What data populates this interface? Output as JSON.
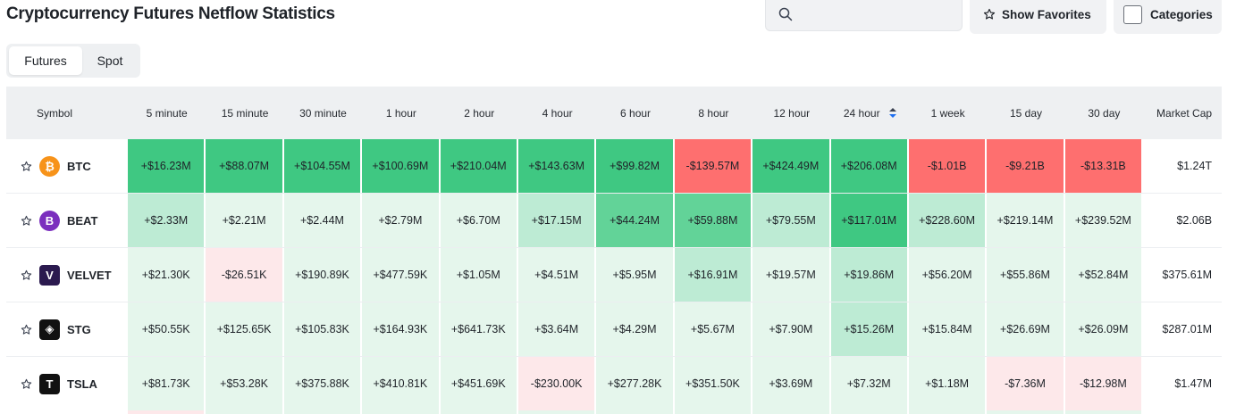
{
  "page_title": "Cryptocurrency Futures Netflow Statistics",
  "search": {
    "placeholder": ""
  },
  "toolbar": {
    "favorites_label": "Show Favorites",
    "categories_label": "Categories"
  },
  "tabs": [
    {
      "label": "Futures",
      "active": true
    },
    {
      "label": "Spot",
      "active": false
    }
  ],
  "columns": [
    "Symbol",
    "5 minute",
    "15 minute",
    "30 minute",
    "1 hour",
    "2 hour",
    "4 hour",
    "6 hour",
    "8 hour",
    "12 hour",
    "24 hour",
    "1 week",
    "15 day",
    "30 day",
    "Market Cap"
  ],
  "sorted_column": "24 hour",
  "colors": {
    "green_strong": "#3fc882",
    "green_medium": "#62d398",
    "green_soft": "#bdebd4",
    "green_faint": "#e5f6ec",
    "red_strong": "#fe6f6f",
    "red_faint": "#fde8ea",
    "accent_blue": "#1e6ff0"
  },
  "rows": [
    {
      "symbol": "BTC",
      "icon": "bitcoin-icon",
      "icon_color": "#f7931a",
      "icon_glyph": "₿",
      "values": [
        "+$16.23M",
        "+$88.07M",
        "+$104.55M",
        "+$100.69M",
        "+$210.04M",
        "+$143.63M",
        "+$99.82M",
        "-$139.57M",
        "+$424.49M",
        "+$206.08M",
        "-$1.01B",
        "-$9.21B",
        "-$13.31B"
      ],
      "tones": [
        "gs",
        "gs",
        "gs",
        "gs",
        "gs",
        "gs",
        "gs",
        "rs",
        "gs",
        "gs",
        "rs",
        "rs",
        "rs"
      ],
      "market_cap": "$1.24T"
    },
    {
      "symbol": "BEAT",
      "icon": "beat-icon",
      "icon_color": "#7b2fbe",
      "icon_glyph": "B",
      "values": [
        "+$2.33M",
        "+$2.21M",
        "+$2.44M",
        "+$2.79M",
        "+$6.70M",
        "+$17.15M",
        "+$44.24M",
        "+$59.88M",
        "+$79.55M",
        "+$117.01M",
        "+$228.60M",
        "+$219.14M",
        "+$239.52M"
      ],
      "tones": [
        "gl",
        "gf",
        "gf",
        "gf",
        "gf",
        "gl",
        "gm",
        "gm",
        "gl",
        "gs",
        "gl",
        "gf",
        "gf"
      ],
      "market_cap": "$2.06B"
    },
    {
      "symbol": "VELVET",
      "icon": "velvet-icon",
      "icon_color": "#2b1a4f",
      "icon_glyph": "V",
      "values": [
        "+$21.30K",
        "-$26.51K",
        "+$190.89K",
        "+$477.59K",
        "+$1.05M",
        "+$4.51M",
        "+$5.95M",
        "+$16.91M",
        "+$19.57M",
        "+$19.86M",
        "+$56.20M",
        "+$55.86M",
        "+$52.84M"
      ],
      "tones": [
        "gf",
        "rf",
        "gf",
        "gf",
        "gf",
        "gf",
        "gf",
        "gl",
        "gf",
        "gl",
        "gf",
        "gf",
        "gf"
      ],
      "market_cap": "$375.61M"
    },
    {
      "symbol": "STG",
      "icon": "stargate-icon",
      "icon_color": "#111111",
      "icon_glyph": "◈",
      "values": [
        "+$50.55K",
        "+$125.65K",
        "+$105.83K",
        "+$164.93K",
        "+$641.73K",
        "+$3.64M",
        "+$4.29M",
        "+$5.67M",
        "+$7.90M",
        "+$15.26M",
        "+$15.84M",
        "+$26.69M",
        "+$26.09M"
      ],
      "tones": [
        "gf",
        "gf",
        "gf",
        "gf",
        "gf",
        "gf",
        "gf",
        "gf",
        "gf",
        "gl",
        "gf",
        "gf",
        "gf"
      ],
      "market_cap": "$287.01M"
    },
    {
      "symbol": "TSLA",
      "icon": "tesla-icon",
      "icon_color": "#111111",
      "icon_glyph": "T",
      "values": [
        "+$81.73K",
        "+$53.28K",
        "+$375.88K",
        "+$410.81K",
        "+$451.69K",
        "-$230.00K",
        "+$277.28K",
        "+$351.50K",
        "+$3.69M",
        "+$7.32M",
        "+$1.18M",
        "-$7.36M",
        "-$12.98M"
      ],
      "tones": [
        "gf",
        "gf",
        "gf",
        "gf",
        "gf",
        "rf",
        "gf",
        "gf",
        "gf",
        "gf",
        "gf",
        "rf",
        "rf"
      ],
      "market_cap": "$1.47M"
    }
  ]
}
